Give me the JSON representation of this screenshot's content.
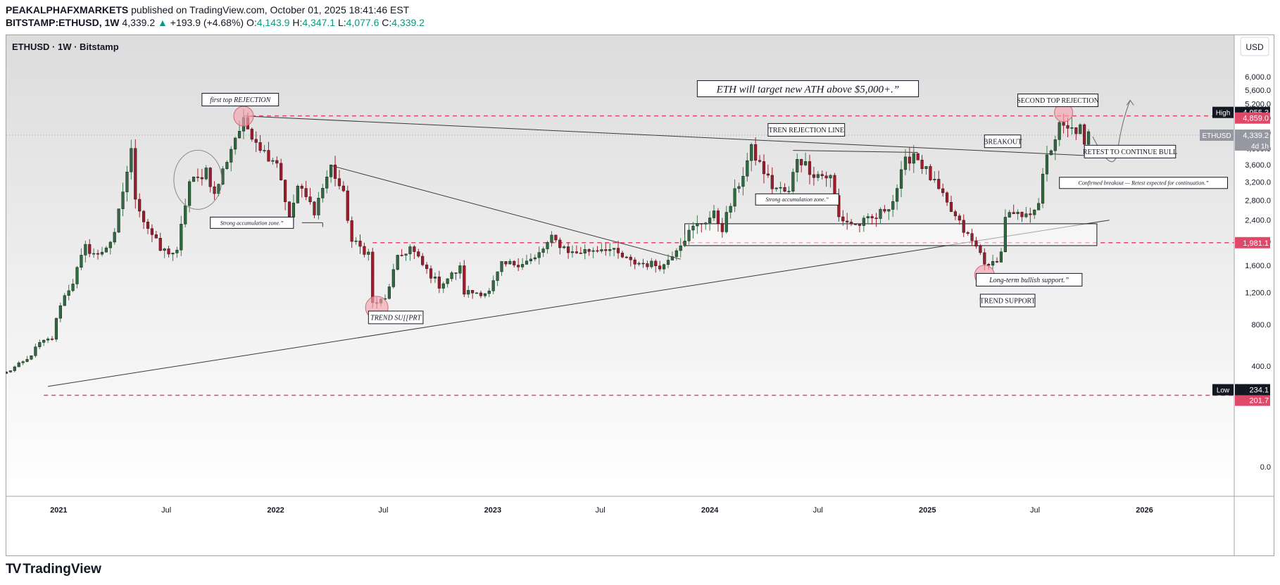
{
  "header": {
    "author": "PEAKALPHAFXMARKETS",
    "published_text": "published on TradingView.com, October 01, 2025 18:41:46 EST",
    "symbol": "BITSTAMP:ETHUSD, 1W",
    "last": "4,339.2",
    "change": "+193.9 (+4.68%)",
    "o_label": "O:",
    "o": "4,143.9",
    "h_label": "H:",
    "h": "4,347.1",
    "l_label": "L:",
    "l": "4,077.6",
    "c_label": "C:",
    "c": "4,339.2"
  },
  "footer": {
    "brand": "TradingView",
    "logo": "TV"
  },
  "colors": {
    "up": "#089981",
    "candle_up": "#3d7a4f",
    "candle_down": "#a01c2c",
    "dashed": "#e0486a",
    "circle": "#f5a3ad"
  },
  "chart_data": {
    "type": "candlestick",
    "title": "ETHUSD · 1W · Bitstamp",
    "currency": "USD",
    "y_scale": "sqrt",
    "ylim": [
      0,
      6450
    ],
    "xlim": [
      "2020-10-05",
      "2026-06-01"
    ],
    "y_ticks": [
      "6,000.0",
      "5,600.0",
      "5,200.0",
      "4,800.0",
      "4,400.0",
      "4,000.0",
      "3,600.0",
      "3,200.0",
      "2,800.0",
      "2,400.0",
      "2,000.0",
      "1,600.0",
      "1,200.0",
      "800.0",
      "400.0",
      "0.0"
    ],
    "y_tick_values": [
      6000,
      5600,
      5200,
      4800,
      4400,
      4000,
      3600,
      3200,
      2800,
      2400,
      2000,
      1600,
      1200,
      800,
      400,
      0
    ],
    "x_ticks": [
      {
        "label": "2021",
        "date": "2021-01-01"
      },
      {
        "label": "Jul",
        "date": "2021-07-01"
      },
      {
        "label": "2022",
        "date": "2022-01-01"
      },
      {
        "label": "Jul",
        "date": "2022-07-01"
      },
      {
        "label": "2023",
        "date": "2023-01-01"
      },
      {
        "label": "Jul",
        "date": "2023-07-01"
      },
      {
        "label": "2024",
        "date": "2024-01-01"
      },
      {
        "label": "Jul",
        "date": "2024-07-01"
      },
      {
        "label": "2025",
        "date": "2025-01-01"
      },
      {
        "label": "Jul",
        "date": "2025-07-01"
      },
      {
        "label": "2026",
        "date": "2026-01-01"
      }
    ],
    "price_anchors": [
      [
        "2020-10-05",
        350
      ],
      [
        "2020-11-09",
        450
      ],
      [
        "2020-11-30",
        600
      ],
      [
        "2020-12-21",
        650
      ],
      [
        "2021-01-04",
        1050
      ],
      [
        "2021-01-25",
        1350
      ],
      [
        "2021-02-15",
        1900
      ],
      [
        "2021-03-08",
        1750
      ],
      [
        "2021-04-05",
        2100
      ],
      [
        "2021-05-03",
        3900
      ],
      [
        "2021-05-10",
        2900
      ],
      [
        "2021-05-24",
        2400
      ],
      [
        "2021-06-21",
        1850
      ],
      [
        "2021-07-19",
        1800
      ],
      [
        "2021-08-09",
        3200
      ],
      [
        "2021-08-23",
        3250
      ],
      [
        "2021-09-06",
        3500
      ],
      [
        "2021-09-20",
        2900
      ],
      [
        "2021-10-04",
        3450
      ],
      [
        "2021-10-25",
        4300
      ],
      [
        "2021-11-08",
        4650
      ],
      [
        "2021-11-22",
        4400
      ],
      [
        "2021-12-13",
        3900
      ],
      [
        "2022-01-03",
        3700
      ],
      [
        "2022-01-24",
        2400
      ],
      [
        "2022-02-07",
        3100
      ],
      [
        "2022-03-07",
        2600
      ],
      [
        "2022-04-04",
        3550
      ],
      [
        "2022-04-25",
        2900
      ],
      [
        "2022-05-09",
        2000
      ],
      [
        "2022-06-06",
        1800
      ],
      [
        "2022-06-13",
        1050
      ],
      [
        "2022-07-04",
        1100
      ],
      [
        "2022-07-25",
        1700
      ],
      [
        "2022-08-15",
        1900
      ],
      [
        "2022-09-05",
        1600
      ],
      [
        "2022-10-03",
        1300
      ],
      [
        "2022-11-07",
        1550
      ],
      [
        "2022-11-14",
        1200
      ],
      [
        "2022-12-26",
        1200
      ],
      [
        "2023-01-16",
        1600
      ],
      [
        "2023-02-20",
        1650
      ],
      [
        "2023-03-13",
        1700
      ],
      [
        "2023-04-10",
        2050
      ],
      [
        "2023-05-15",
        1800
      ],
      [
        "2023-07-10",
        1900
      ],
      [
        "2023-08-21",
        1650
      ],
      [
        "2023-10-16",
        1600
      ],
      [
        "2023-11-06",
        1900
      ],
      [
        "2023-12-04",
        2250
      ],
      [
        "2024-01-08",
        2500
      ],
      [
        "2024-01-22",
        2250
      ],
      [
        "2024-02-26",
        3400
      ],
      [
        "2024-03-11",
        3950
      ],
      [
        "2024-04-15",
        3100
      ],
      [
        "2024-05-13",
        2950
      ],
      [
        "2024-05-27",
        3800
      ],
      [
        "2024-06-24",
        3400
      ],
      [
        "2024-07-22",
        3300
      ],
      [
        "2024-08-05",
        2450
      ],
      [
        "2024-09-02",
        2300
      ],
      [
        "2024-10-07",
        2450
      ],
      [
        "2024-11-04",
        2800
      ],
      [
        "2024-11-25",
        3650
      ],
      [
        "2024-12-09",
        3900
      ],
      [
        "2025-01-06",
        3300
      ],
      [
        "2025-02-03",
        2700
      ],
      [
        "2025-03-03",
        2200
      ],
      [
        "2025-03-31",
        1800
      ],
      [
        "2025-04-14",
        1550
      ],
      [
        "2025-05-05",
        1800
      ],
      [
        "2025-05-12",
        2500
      ],
      [
        "2025-06-16",
        2450
      ],
      [
        "2025-07-07",
        2800
      ],
      [
        "2025-07-21",
        3750
      ],
      [
        "2025-08-11",
        4550
      ],
      [
        "2025-08-25",
        4450
      ],
      [
        "2025-09-15",
        4500
      ],
      [
        "2025-09-22",
        4000
      ],
      [
        "2025-09-29",
        4339
      ]
    ],
    "markers": {
      "high": {
        "label": "High",
        "value": "4,955.3",
        "y": 4955.3
      },
      "high_close": {
        "value": "4,859.0",
        "y": 4859.0
      },
      "last": {
        "label": "ETHUSD",
        "value": "4,339.2",
        "countdown": "4d 1h",
        "y": 4339.2
      },
      "level": {
        "value": "1,981.1",
        "y": 1981.1
      },
      "low": {
        "label": "Low",
        "value": "234.1",
        "y": 234.1
      },
      "low_close": {
        "value": "201.7",
        "y": 201.7
      }
    },
    "annotations": {
      "main_target": "ETH will target new ATH above $5,000+.”",
      "first_top": "first top REJECTION",
      "second_top": "SECOND TOP REJECTION",
      "tren_rejection": "TREN REJECTION LINE",
      "breakout": "BREAKOUT",
      "retest": "RETEST TO CONTINUE BULL",
      "confirmed": "Confirmed breakout — Retest expected for continuation.”",
      "accum1": "Strong accumulation zone.”",
      "accum2": "Strong accumulation zone.”",
      "trend_support1": "TREND SU[[PRT",
      "long_term": "Long-term bullish support.”",
      "trend_support2": "TREND SUPPORT"
    }
  }
}
